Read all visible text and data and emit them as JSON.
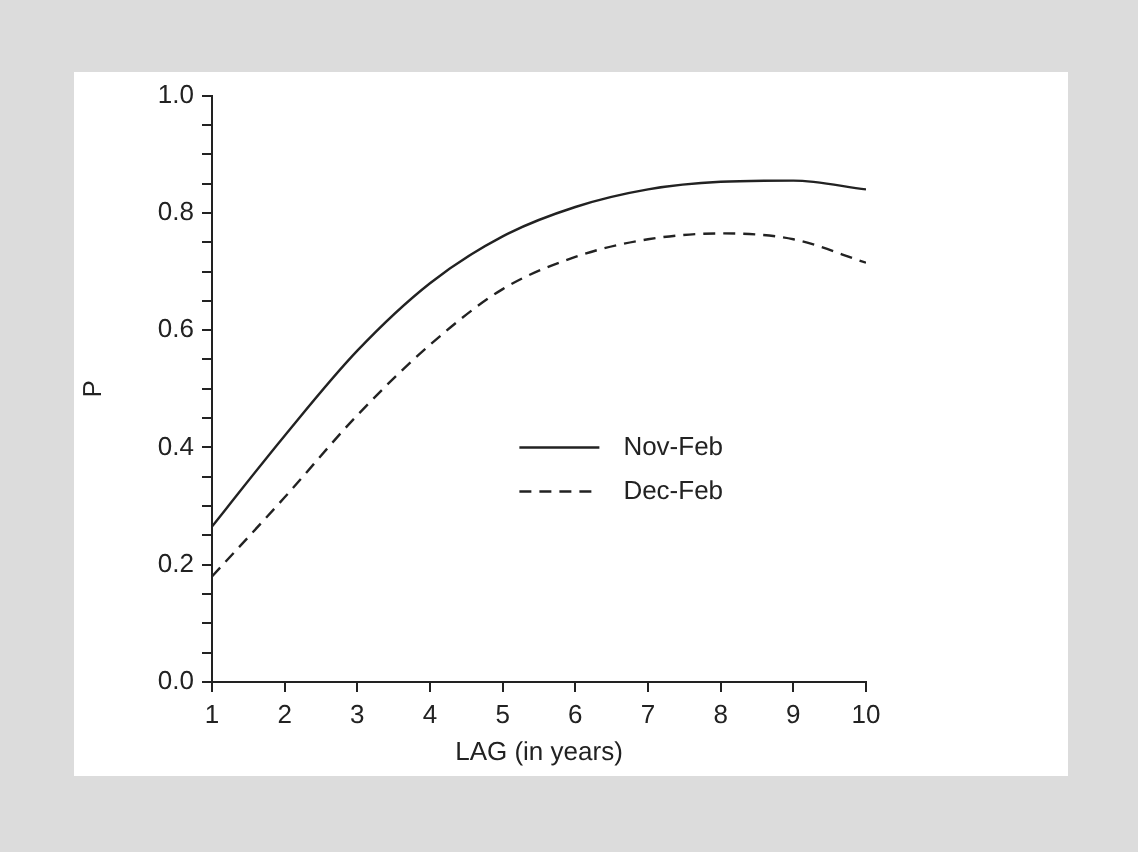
{
  "chart_data": {
    "type": "line",
    "xlabel": "LAG (in years)",
    "ylabel": "P",
    "x": [
      1,
      2,
      3,
      4,
      5,
      6,
      7,
      8,
      9,
      10
    ],
    "series": [
      {
        "name": "Nov-Feb",
        "color": "#222222",
        "line_style": "solid",
        "values": [
          0.265,
          0.42,
          0.565,
          0.68,
          0.76,
          0.81,
          0.84,
          0.853,
          0.855,
          0.84
        ]
      },
      {
        "name": "Dec-Feb",
        "color": "#222222",
        "line_style": "dashed",
        "values": [
          0.18,
          0.315,
          0.455,
          0.575,
          0.67,
          0.725,
          0.755,
          0.765,
          0.755,
          0.715
        ]
      }
    ],
    "xlim": [
      1,
      10
    ],
    "xticks": [
      1,
      2,
      3,
      4,
      5,
      6,
      7,
      8,
      9,
      10
    ],
    "ylim": [
      0,
      1
    ],
    "yticks": [
      {
        "value": 0,
        "label": "0.0"
      },
      {
        "value": 0.05,
        "label": null
      },
      {
        "value": 0.1,
        "label": null
      },
      {
        "value": 0.15,
        "label": null
      },
      {
        "value": 0.2,
        "label": "0.2"
      },
      {
        "value": 0.25,
        "label": null
      },
      {
        "value": 0.3,
        "label": null
      },
      {
        "value": 0.35,
        "label": null
      },
      {
        "value": 0.4,
        "label": "0.4"
      },
      {
        "value": 0.45,
        "label": null
      },
      {
        "value": 0.5,
        "label": null
      },
      {
        "value": 0.55,
        "label": null
      },
      {
        "value": 0.6,
        "label": "0.6"
      },
      {
        "value": 0.65,
        "label": null
      },
      {
        "value": 0.7,
        "label": null
      },
      {
        "value": 0.75,
        "label": null
      },
      {
        "value": 0.8,
        "label": "0.8"
      },
      {
        "value": 0.85,
        "label": null
      },
      {
        "value": 0.9,
        "label": null
      },
      {
        "value": 0.95,
        "label": null
      },
      {
        "value": 1,
        "label": "1.0"
      }
    ],
    "grid": false,
    "legend": "center",
    "marker": "none"
  }
}
